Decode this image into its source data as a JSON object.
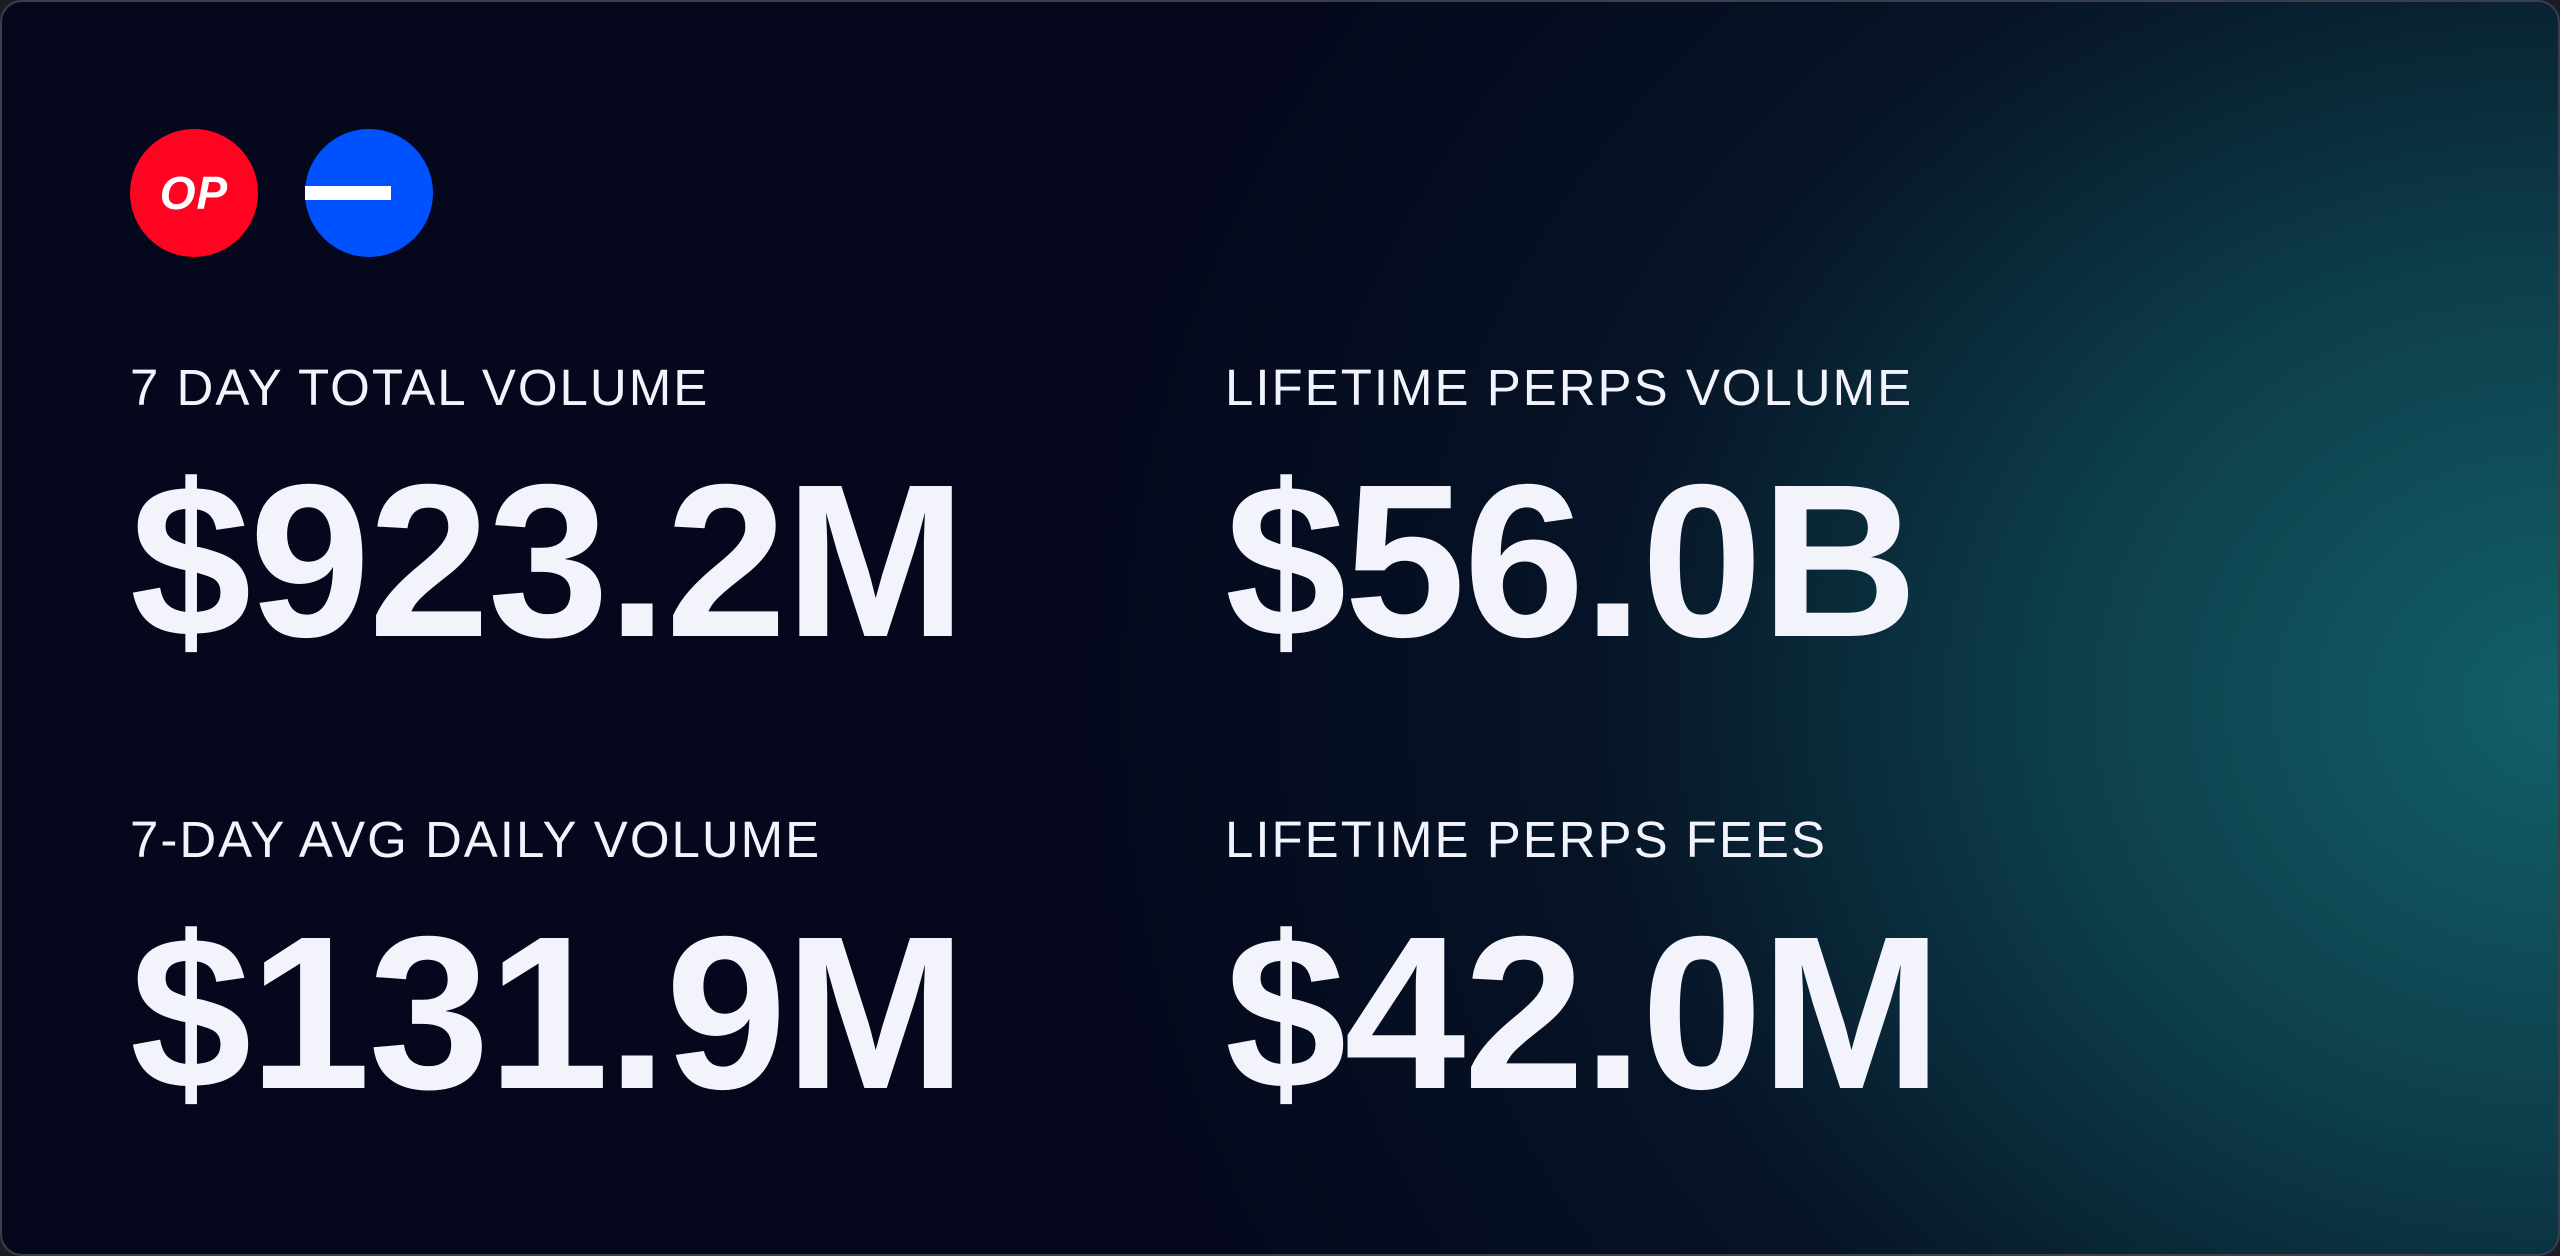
{
  "logos": {
    "op": "OP"
  },
  "stats": [
    {
      "label": "7 DAY TOTAL VOLUME",
      "value": "$923.2M"
    },
    {
      "label": "LIFETIME PERPS VOLUME",
      "value": "$56.0B"
    },
    {
      "label": "7-DAY AVG DAILY VOLUME",
      "value": "$131.9M"
    },
    {
      "label": "LIFETIME PERPS FEES",
      "value": "$42.0M"
    }
  ]
}
